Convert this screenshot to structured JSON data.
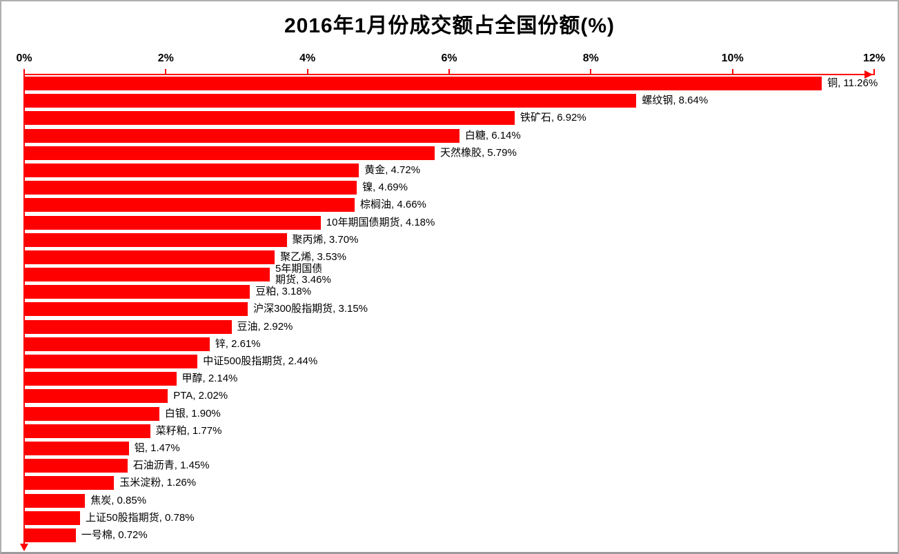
{
  "title": "2016年1月份成交额占全国份额(%)",
  "colors": {
    "bar": "#FF0000",
    "axis": "#FF0000",
    "text": "#000000",
    "background": "#FFFFFF",
    "frame_border": "#AEAEAE"
  },
  "chart_data": {
    "type": "bar",
    "orientation": "horizontal",
    "title": "2016年1月份成交额占全国份额(%)",
    "xlabel": "",
    "ylabel": "",
    "xlim": [
      0,
      12
    ],
    "x_tick_labels": [
      "0%",
      "2%",
      "4%",
      "6%",
      "8%",
      "10%",
      "12%"
    ],
    "grid": false,
    "legend": false,
    "bar_color": "#FF0000",
    "categories": [
      "铜",
      "螺纹钢",
      "铁矿石",
      "白糖",
      "天然橡胶",
      "黄金",
      "镍",
      "棕榈油",
      "10年期国债期货",
      "聚丙烯",
      "聚乙烯",
      "5年期国债期货",
      "豆粕",
      "沪深300股指期货",
      "豆油",
      "锌",
      "中证500股指期货",
      "甲醇",
      "PTA",
      "白银",
      "菜籽粕",
      "铝",
      "石油沥青",
      "玉米淀粉",
      "焦炭",
      "上证50股指期货",
      "一号棉"
    ],
    "values": [
      11.26,
      8.64,
      6.92,
      6.14,
      5.79,
      4.72,
      4.69,
      4.66,
      4.18,
      3.7,
      3.53,
      3.46,
      3.18,
      3.15,
      2.92,
      2.61,
      2.44,
      2.14,
      2.02,
      1.9,
      1.77,
      1.47,
      1.45,
      1.26,
      0.85,
      0.78,
      0.72
    ],
    "items": [
      {
        "name": "铜",
        "value": 11.26,
        "label": "铜, 11.26%"
      },
      {
        "name": "螺纹钢",
        "value": 8.64,
        "label": "螺纹钢, 8.64%"
      },
      {
        "name": "铁矿石",
        "value": 6.92,
        "label": "铁矿石, 6.92%"
      },
      {
        "name": "白糖",
        "value": 6.14,
        "label": "白糖, 6.14%"
      },
      {
        "name": "天然橡胶",
        "value": 5.79,
        "label": "天然橡胶, 5.79%"
      },
      {
        "name": "黄金",
        "value": 4.72,
        "label": "黄金, 4.72%"
      },
      {
        "name": "镍",
        "value": 4.69,
        "label": "镍, 4.69%"
      },
      {
        "name": "棕榈油",
        "value": 4.66,
        "label": "棕榈油, 4.66%"
      },
      {
        "name": "10年期国债期货",
        "value": 4.18,
        "label": "10年期国债期货, 4.18%"
      },
      {
        "name": "聚丙烯",
        "value": 3.7,
        "label": "聚丙烯, 3.70%"
      },
      {
        "name": "聚乙烯",
        "value": 3.53,
        "label": "聚乙烯, 3.53%"
      },
      {
        "name": "5年期国债期货",
        "value": 3.46,
        "label_lines": [
          "5年期国债",
          "期货, 3.46%"
        ]
      },
      {
        "name": "豆粕",
        "value": 3.18,
        "label": "豆粕, 3.18%"
      },
      {
        "name": "沪深300股指期货",
        "value": 3.15,
        "label": "沪深300股指期货, 3.15%"
      },
      {
        "name": "豆油",
        "value": 2.92,
        "label": "豆油, 2.92%"
      },
      {
        "name": "锌",
        "value": 2.61,
        "label": "锌, 2.61%"
      },
      {
        "name": "中证500股指期货",
        "value": 2.44,
        "label": "中证500股指期货, 2.44%"
      },
      {
        "name": "甲醇",
        "value": 2.14,
        "label": "甲醇, 2.14%"
      },
      {
        "name": "PTA",
        "value": 2.02,
        "label": "PTA, 2.02%"
      },
      {
        "name": "白银",
        "value": 1.9,
        "label": "白银, 1.90%"
      },
      {
        "name": "菜籽粕",
        "value": 1.77,
        "label": "菜籽粕, 1.77%"
      },
      {
        "name": "铝",
        "value": 1.47,
        "label": "铝, 1.47%"
      },
      {
        "name": "石油沥青",
        "value": 1.45,
        "label": "石油沥青, 1.45%"
      },
      {
        "name": "玉米淀粉",
        "value": 1.26,
        "label": "玉米淀粉, 1.26%"
      },
      {
        "name": "焦炭",
        "value": 0.85,
        "label": "焦炭, 0.85%"
      },
      {
        "name": "上证50股指期货",
        "value": 0.78,
        "label": "上证50股指期货, 0.78%"
      },
      {
        "name": "一号棉",
        "value": 0.72,
        "label": "一号棉, 0.72%"
      }
    ]
  }
}
